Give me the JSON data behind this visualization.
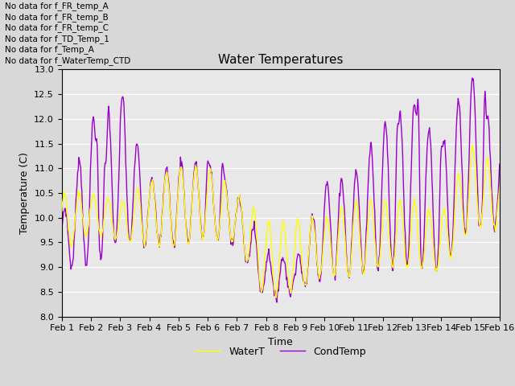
{
  "title": "Water Temperatures",
  "xlabel": "Time",
  "ylabel": "Temperature (C)",
  "ylim": [
    8.0,
    13.0
  ],
  "yticks": [
    8.0,
    8.5,
    9.0,
    9.5,
    10.0,
    10.5,
    11.0,
    11.5,
    12.0,
    12.5,
    13.0
  ],
  "xtick_labels": [
    "Feb 1",
    "Feb 2",
    "Feb 3",
    "Feb 4",
    "Feb 5",
    "Feb 6",
    "Feb 7",
    "Feb 8",
    "Feb 9",
    "Feb 10",
    "Feb 11",
    "Feb 12",
    "Feb 13",
    "Feb 14",
    "Feb 15",
    "Feb 16"
  ],
  "watert_color": "#ffff00",
  "condt_color": "#9900cc",
  "legend_labels": [
    "WaterT",
    "CondTemp"
  ],
  "no_data_texts": [
    "No data for f_FR_temp_A",
    "No data for f_FR_temp_B",
    "No data for f_FR_temp_C",
    "No data for f_TD_Temp_1",
    "No data for f_Temp_A",
    "No data for f_WaterTemp_CTD"
  ],
  "bg_color": "#d8d8d8",
  "ax_bg_color": "#e8e8e8",
  "grid_color": "#ffffff"
}
